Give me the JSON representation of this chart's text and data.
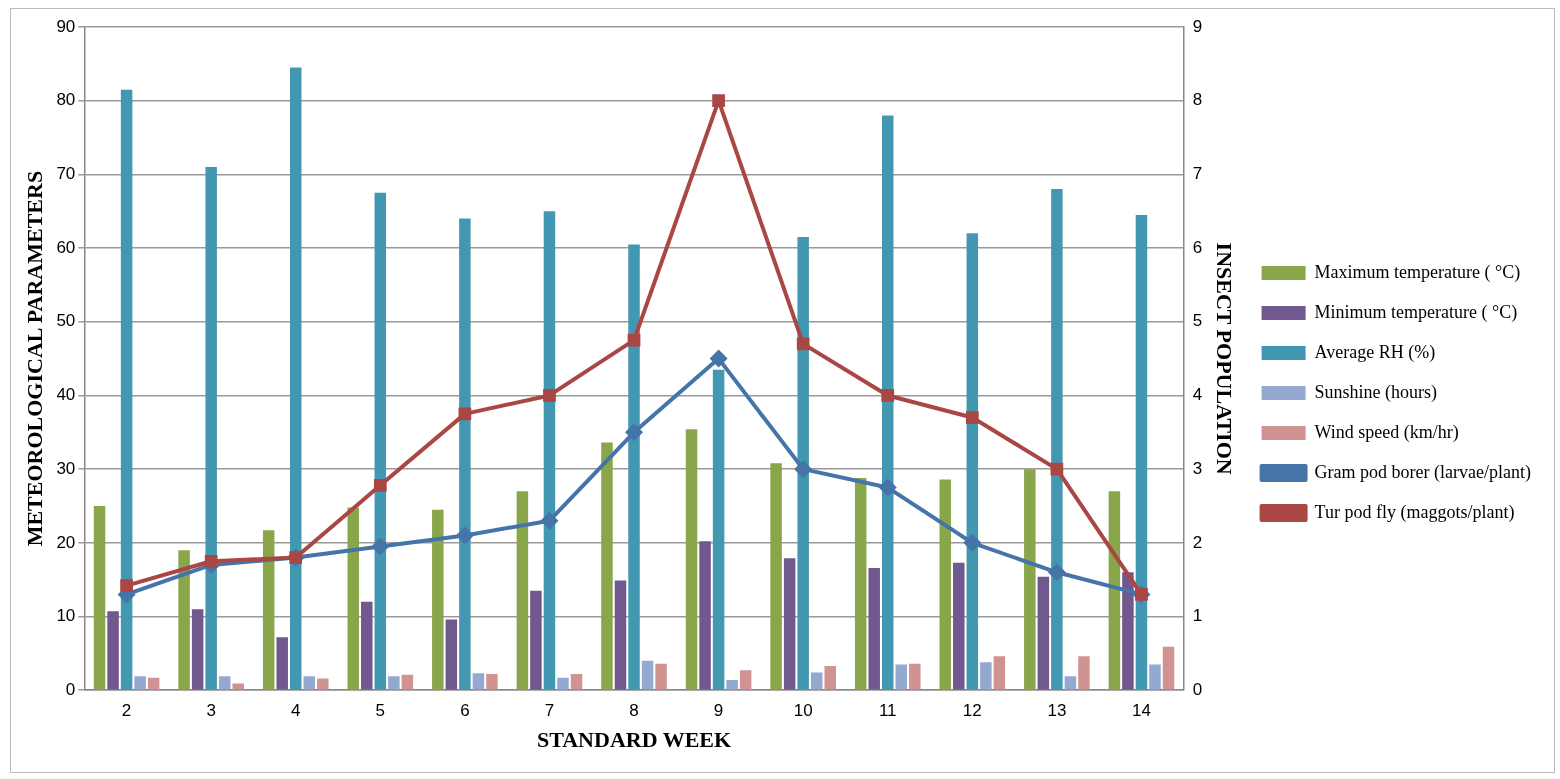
{
  "chart_data": {
    "type": "bar",
    "xlabel": "STANDARD WEEK",
    "ylabel": "METEOROLOGICAL PARAMETERS",
    "y2label": "INSECT POPULATION",
    "categories": [
      "2",
      "3",
      "4",
      "5",
      "6",
      "7",
      "8",
      "9",
      "10",
      "11",
      "12",
      "13",
      "14"
    ],
    "series": [
      {
        "name": "Maximum temperature ( °C)",
        "color": "#8aa64b",
        "values": [
          25,
          19,
          21.7,
          24.8,
          24.5,
          27,
          33.6,
          35.4,
          30.8,
          28.8,
          28.6,
          30,
          27
        ]
      },
      {
        "name": "Minimum temperature ( °C)",
        "color": "#71588f",
        "values": [
          10.7,
          11,
          7.2,
          12,
          9.6,
          13.5,
          14.9,
          20.2,
          17.9,
          16.6,
          17.3,
          15.4,
          16
        ]
      },
      {
        "name": "Average RH (%)",
        "color": "#4298b0",
        "values": [
          81.5,
          71,
          84.5,
          67.5,
          64,
          65,
          60.5,
          43.5,
          61.5,
          78,
          62,
          68,
          64.5
        ]
      },
      {
        "name": "Sunshine (hours)",
        "color": "#93a9d0",
        "values": [
          1.9,
          1.9,
          1.9,
          1.9,
          2.3,
          1.7,
          4,
          1.4,
          2.4,
          3.5,
          3.8,
          1.9,
          3.5
        ]
      },
      {
        "name": "Wind speed (km/hr)",
        "color": "#d19392",
        "values": [
          1.7,
          0.9,
          1.6,
          2.1,
          2.2,
          2.2,
          3.6,
          2.7,
          3.3,
          3.6,
          4.6,
          4.6,
          5.9
        ]
      },
      {
        "name": "Gram pod borer (larvae/plant)",
        "type": "line",
        "axis": "y2",
        "marker": "diamond",
        "color": "#4574a8",
        "values": [
          1.3,
          1.7,
          1.8,
          1.95,
          2.1,
          2.3,
          3.5,
          4.5,
          3.0,
          2.75,
          2.0,
          1.6,
          1.3
        ]
      },
      {
        "name": "Tur pod fly (maggots/plant)",
        "type": "line",
        "axis": "y2",
        "marker": "square",
        "color": "#aa4643",
        "values": [
          1.42,
          1.75,
          1.8,
          2.78,
          3.75,
          4.0,
          4.75,
          8.0,
          4.7,
          4.0,
          3.7,
          3.0,
          1.3
        ]
      }
    ],
    "ylim": [
      0,
      90
    ],
    "yticks": [
      0,
      10,
      20,
      30,
      40,
      50,
      60,
      70,
      80,
      90
    ],
    "y2lim": [
      0,
      9
    ],
    "y2ticks": [
      0,
      1,
      2,
      3,
      4,
      5,
      6,
      7,
      8,
      9
    ],
    "grid": "y",
    "legend": "right"
  }
}
